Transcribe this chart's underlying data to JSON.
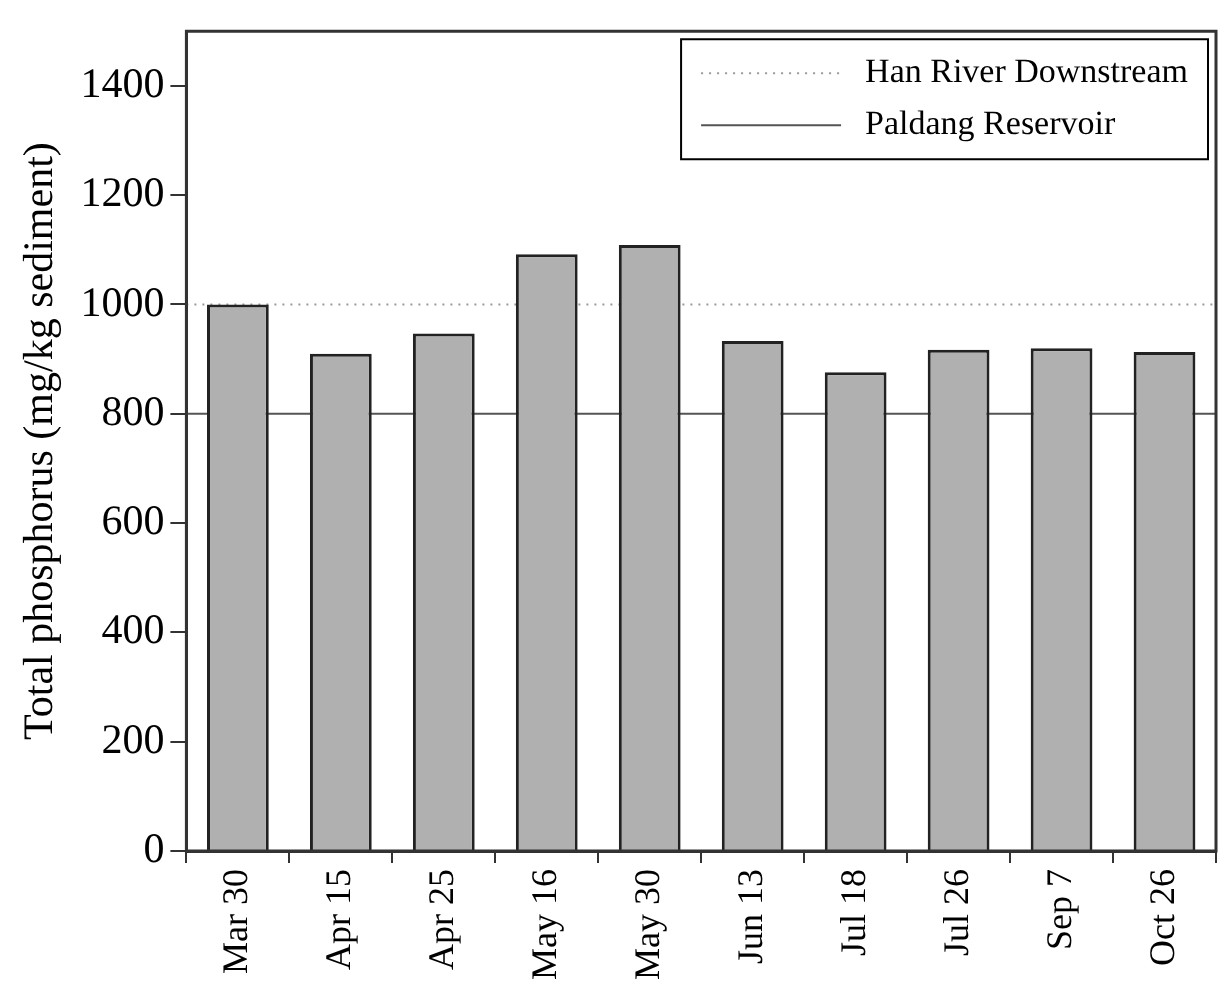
{
  "chart_data": {
    "type": "bar",
    "ylabel": "Total phosphorus (mg/kg sediment)",
    "categories": [
      "Mar 30",
      "Apr 15",
      "Apr 25",
      "May 16",
      "May 30",
      "Jun 13",
      "Jul 18",
      "Jul 26",
      "Sep 7",
      "Oct 26"
    ],
    "values": [
      1000,
      910,
      947,
      1092,
      1109,
      933,
      876,
      917,
      920,
      913
    ],
    "color": "#b0b0b0",
    "ylim": [
      0,
      1500
    ],
    "yticks": [
      0,
      200,
      400,
      600,
      800,
      1000,
      1200,
      1400
    ],
    "ref_lines": [
      {
        "axis": "y",
        "value": 1000,
        "label": "Han River Downstream",
        "line_style": "dotted",
        "color": "#999999"
      },
      {
        "axis": "y",
        "value": 800,
        "label": "Paldang Reservoir",
        "line_style": "solid",
        "color": "#555555"
      }
    ],
    "legend": "top right"
  }
}
